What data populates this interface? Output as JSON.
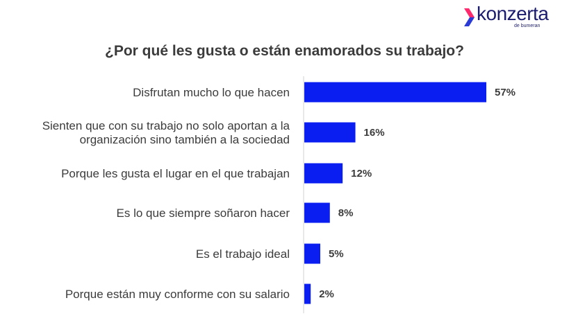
{
  "brand": {
    "name": "konzerta",
    "tagline": "de bumeran",
    "colors": {
      "mark_top": "#ff2a6d",
      "mark_bottom": "#2b3bd6",
      "text": "#1c1c6e"
    }
  },
  "chart_data": {
    "type": "bar",
    "orientation": "horizontal",
    "title": "¿Por qué les gusta o están enamorados su trabajo?",
    "categories": [
      [
        "Disfrutan mucho lo que hacen"
      ],
      [
        "Sienten que con su trabajo no solo aportan a la",
        "organización sino también a la sociedad"
      ],
      [
        "Porque les gusta el lugar en el que trabajan"
      ],
      [
        "Es lo que siempre soñaron hacer"
      ],
      [
        "Es el trabajo ideal"
      ],
      [
        "Porque están muy conforme con su salario"
      ]
    ],
    "values": [
      57,
      16,
      12,
      8,
      5,
      2
    ],
    "value_labels": [
      "57%",
      "16%",
      "12%",
      "8%",
      "5%",
      "2%"
    ],
    "unit": "%",
    "xlim": [
      0,
      57
    ],
    "bar_color": "#0a1ef2",
    "grid": false,
    "legend": "none"
  }
}
